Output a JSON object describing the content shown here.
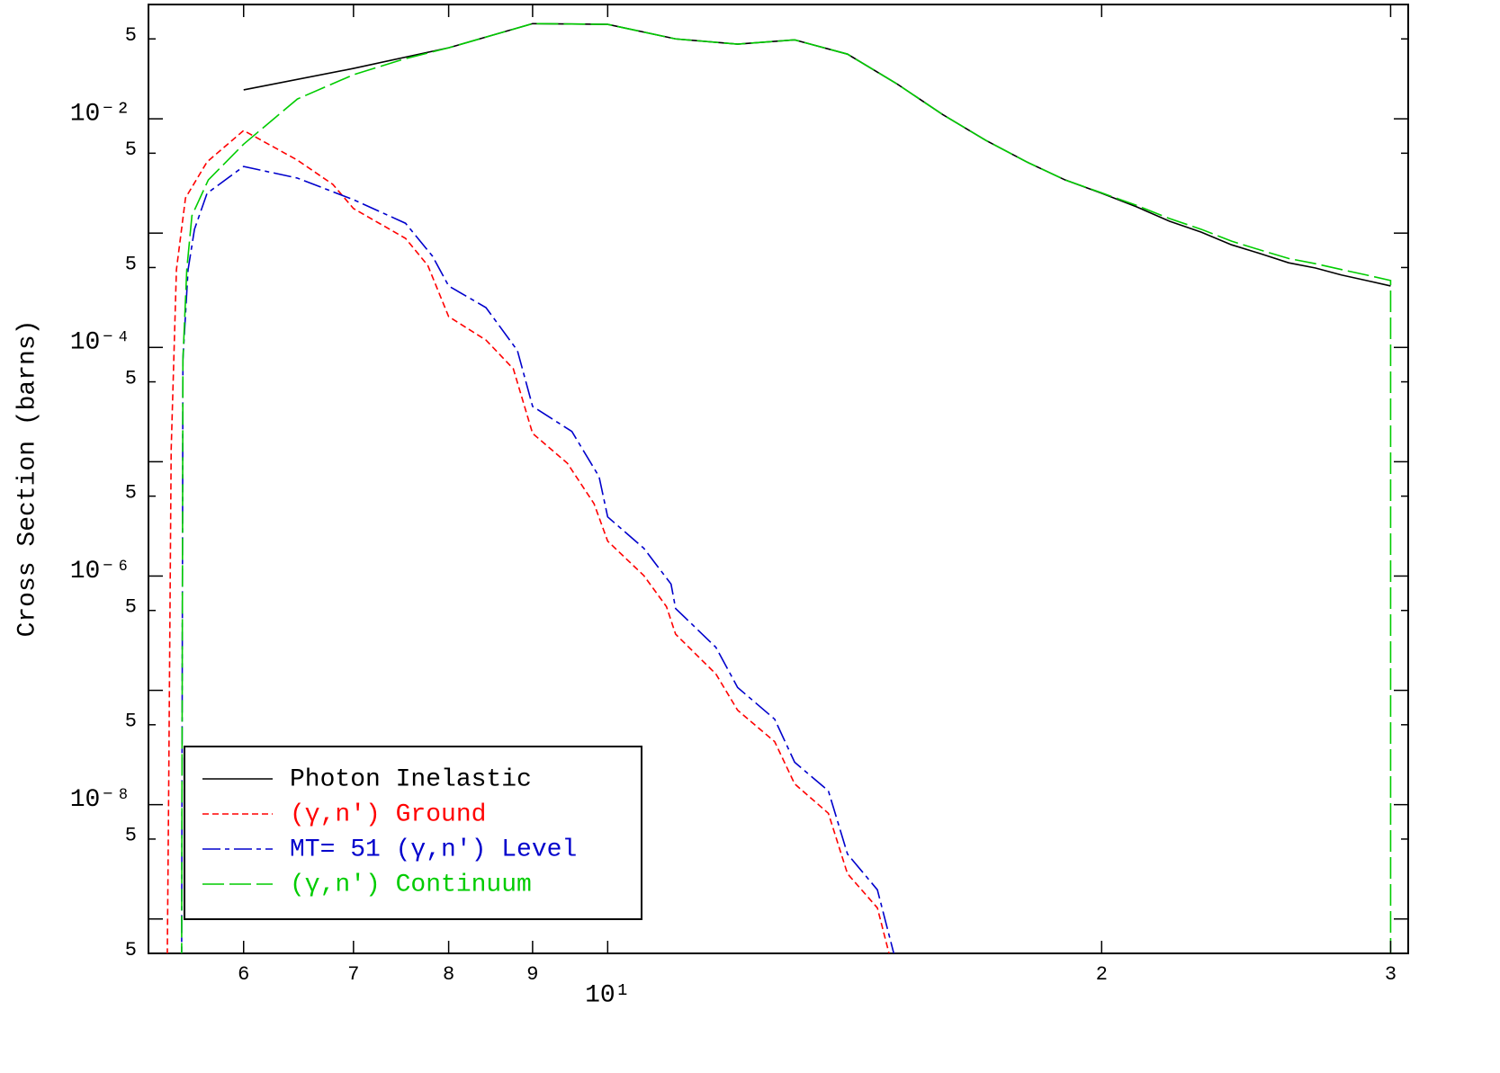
{
  "chart_data": {
    "type": "line",
    "y_label": "Cross Section (barns)",
    "xscale": "log",
    "yscale": "log",
    "xlim": [
      5.25,
      30.75
    ],
    "ylim": [
      5e-10,
      0.1
    ],
    "xticks": [
      6,
      7,
      8,
      9,
      {
        "value": 10,
        "label": "10¹"
      },
      {
        "value": 20,
        "label": "2"
      },
      {
        "value": 30,
        "label": "3"
      }
    ],
    "yticks": [
      {
        "value": 0.05,
        "label": "5"
      },
      {
        "value": 0.01,
        "label": "10⁻²"
      },
      {
        "value": 0.005,
        "label": "5"
      },
      {
        "value": 0.0005,
        "label": "5"
      },
      {
        "value": 0.0001,
        "label": "10⁻⁴"
      },
      {
        "value": 5e-05,
        "label": "5"
      },
      {
        "value": 5e-06,
        "label": "5"
      },
      {
        "value": 1e-06,
        "label": "10⁻⁶"
      },
      {
        "value": 5e-07,
        "label": "5"
      },
      {
        "value": 5e-08,
        "label": "5"
      },
      {
        "value": 1e-08,
        "label": "10⁻⁸"
      },
      {
        "value": 5e-09,
        "label": "5"
      },
      {
        "value": 5e-10,
        "label": "5"
      }
    ],
    "y_minor_ticks": [
      0.001,
      1e-05,
      1e-07,
      1e-09
    ],
    "legend": "lower left",
    "series": [
      {
        "name": "Photon Inelastic",
        "color": "#000000",
        "dash": "none",
        "x": [
          6,
          7,
          8,
          9,
          10,
          11,
          12,
          13,
          14,
          15,
          16,
          17,
          18,
          19,
          20,
          21,
          22,
          23,
          24,
          25,
          26,
          27,
          28,
          29,
          30
        ],
        "values": [
          0.0179,
          0.0276,
          0.0418,
          0.068,
          0.067,
          0.05,
          0.045,
          0.049,
          0.0368,
          0.0203,
          0.0109,
          0.00648,
          0.0042,
          0.00292,
          0.00223,
          0.0017,
          0.00127,
          0.00102,
          0.00079,
          0.00066,
          0.00055,
          0.000495,
          0.00043,
          0.000385,
          0.000345
        ]
      },
      {
        "name": "(γ,n') Ground",
        "color": "#ff0000",
        "dash": "7,4",
        "x": [
          5.39,
          5.4,
          5.42,
          5.46,
          5.53,
          5.7,
          6,
          6.47,
          6.8,
          7,
          7.53,
          7.77,
          8,
          8.43,
          8.76,
          9,
          9.45,
          9.81,
          10,
          10.52,
          10.86,
          11,
          11.64,
          12,
          12.64,
          13,
          13.63,
          14,
          14.6,
          14.9
        ],
        "values": [
          4e-10,
          9.2e-09,
          1.28e-05,
          0.000478,
          0.00203,
          0.0042,
          0.0079,
          0.00435,
          0.00267,
          0.00164,
          0.0009,
          0.00052,
          0.000186,
          0.000116,
          6.5e-05,
          1.77e-05,
          9.7e-06,
          4.3e-06,
          2.02e-06,
          1.01e-06,
          5.4e-07,
          3.1e-07,
          1.39e-07,
          6.7e-08,
          3.56e-08,
          1.52e-08,
          8.4e-09,
          2.49e-09,
          1.25e-09,
          4e-10
        ]
      },
      {
        "name": "MT= 51 (γ,n') Level",
        "color": "#0000cc",
        "dash": "20,5,5,5",
        "x": [
          5.5,
          5.51,
          5.55,
          5.6,
          5.7,
          6,
          6.47,
          7,
          7.53,
          7.82,
          8,
          8.43,
          8.81,
          9,
          9.51,
          9.88,
          10,
          10.52,
          10.93,
          11,
          11.64,
          12,
          12.64,
          13,
          13.63,
          14,
          14.6,
          15
        ],
        "values": [
          4e-10,
          7.8e-05,
          0.000478,
          0.00108,
          0.00223,
          0.00383,
          0.00303,
          0.00196,
          0.00122,
          0.00063,
          0.000345,
          0.000223,
          9.4e-05,
          3.05e-05,
          1.84e-05,
          7.4e-06,
          3.29e-06,
          1.75e-06,
          8.5e-07,
          5.2e-07,
          2.38e-07,
          1.06e-07,
          5.6e-08,
          2.35e-08,
          1.32e-08,
          3.7e-09,
          1.8e-09,
          4e-10
        ]
      },
      {
        "name": "(γ,n') Continuum",
        "color": "#00cc00",
        "dash": "24,6",
        "x": [
          5.5,
          5.51,
          5.54,
          5.58,
          5.71,
          6,
          6.47,
          7,
          7.53,
          8,
          9,
          10,
          11,
          12,
          13,
          14,
          15,
          16,
          17,
          18,
          19,
          20,
          21,
          22,
          23,
          24,
          25,
          26,
          27,
          28,
          29,
          30,
          30
        ],
        "values": [
          4e-10,
          7.8e-05,
          0.00048,
          0.00142,
          0.00292,
          0.006,
          0.0149,
          0.0243,
          0.0336,
          0.0418,
          0.068,
          0.067,
          0.05,
          0.045,
          0.049,
          0.0368,
          0.0203,
          0.0109,
          0.00648,
          0.0042,
          0.00292,
          0.00225,
          0.00175,
          0.00134,
          0.00108,
          0.00085,
          0.00071,
          0.0006,
          0.00054,
          0.00048,
          0.00043,
          0.000385,
          4e-10
        ]
      }
    ]
  }
}
